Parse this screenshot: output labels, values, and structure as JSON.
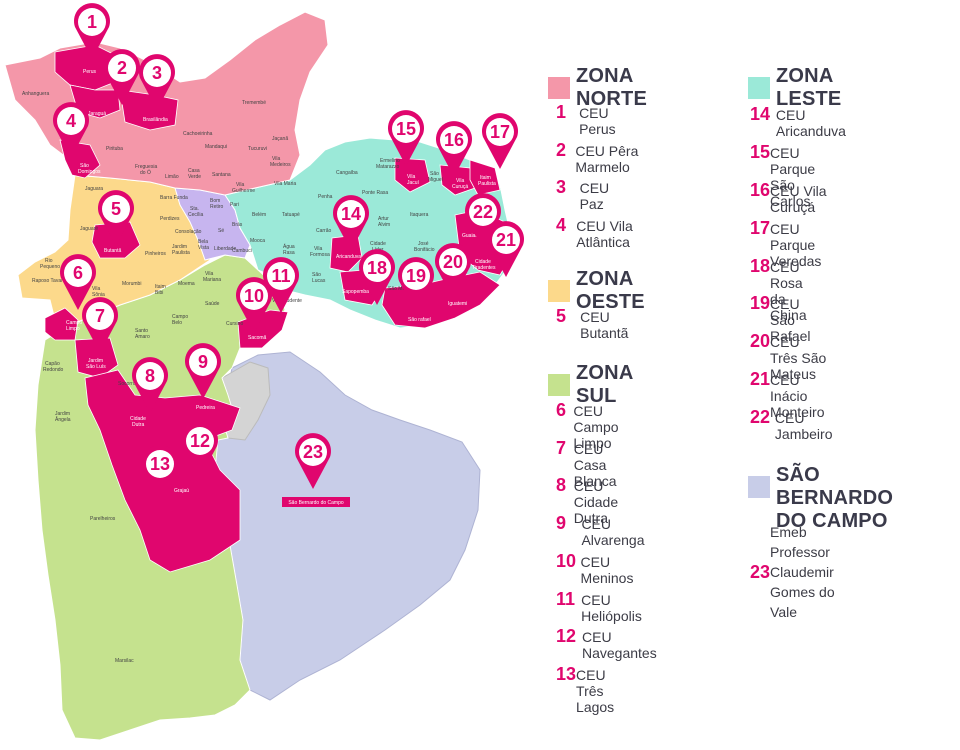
{
  "colors": {
    "accent": "#e0066e",
    "norte": "#f497a9",
    "oeste": "#fcd98b",
    "sul": "#c5e28e",
    "leste": "#9be9d8",
    "centro": "#c7b5ef",
    "sbc": "#c8cde8",
    "gray": "#d4d4d4"
  },
  "zones": {
    "norte": {
      "title": "ZONA NORTE",
      "items": [
        {
          "num": "1",
          "name": "CEU Perus"
        },
        {
          "num": "2",
          "name": "CEU Pêra Marmelo"
        },
        {
          "num": "3",
          "name": "CEU Paz"
        },
        {
          "num": "4",
          "name": "CEU Vila Atlântica"
        }
      ]
    },
    "oeste": {
      "title": "ZONA OESTE",
      "items": [
        {
          "num": "5",
          "name": "CEU Butantã"
        }
      ]
    },
    "sul": {
      "title": "ZONA SUL",
      "items": [
        {
          "num": "6",
          "name": "CEU Campo Limpo"
        },
        {
          "num": "7",
          "name": "CEU Casa Blanca"
        },
        {
          "num": "8",
          "name": "CEU Cidade Dutra"
        },
        {
          "num": "9",
          "name": "CEU Alvarenga"
        },
        {
          "num": "10",
          "name": "CEU Meninos"
        },
        {
          "num": "11",
          "name": "CEU Heliópolis"
        },
        {
          "num": "12",
          "name": "CEU Navegantes"
        },
        {
          "num": "13",
          "name": "CEU Três Lagos"
        }
      ]
    },
    "leste": {
      "title": "ZONA LESTE",
      "items": [
        {
          "num": "14",
          "name": "CEU Aricanduva"
        },
        {
          "num": "15",
          "name": "CEU Parque São Carlos"
        },
        {
          "num": "16",
          "name": "CEU Vila Curuçá"
        },
        {
          "num": "17",
          "name": "CEU Parque Veredas"
        },
        {
          "num": "18",
          "name": "CEU Rosa da China"
        },
        {
          "num": "19",
          "name": "CEU São Rafael"
        },
        {
          "num": "20",
          "name": "CEU Três São Mateus"
        },
        {
          "num": "21",
          "name": "CEU Inácio Monteiro"
        },
        {
          "num": "22",
          "name": "CEU Jambeiro"
        }
      ]
    },
    "sbc": {
      "title_line1": "SÃO BERNARDO",
      "title_line2": "DO CAMPO",
      "item": {
        "num": "23",
        "line1": "Emeb Professor Claudemir",
        "line2": "Gomes do Vale"
      }
    }
  },
  "map": {
    "pins": [
      "1",
      "2",
      "3",
      "4",
      "5",
      "6",
      "7",
      "8",
      "9",
      "10",
      "11",
      "12",
      "13",
      "14",
      "15",
      "16",
      "17",
      "18",
      "19",
      "20",
      "21",
      "22",
      "23"
    ],
    "sbc_label": "São Bernardo do Campo",
    "districts_white": [
      "Perus",
      "Jaraguá",
      "Brasilândia",
      "São Domingos",
      "Butantã",
      "Campo Limpo",
      "Jardim São Luís",
      "Cidade Dutra",
      "Pedreira",
      "Grajaú",
      "Sacomã",
      "Aricanduva",
      "Sapopemba",
      "São rafael",
      "Iguatemi",
      "Cidade Tiradentes",
      "Guaianases",
      "Vila Jacuí",
      "Vila Curuçá",
      "Itaim Paulista"
    ],
    "districts_dark": [
      "Anhanguera",
      "Pirituba",
      "Freguesia do Ó",
      "Limão",
      "Casa Verde",
      "Cachoeirinha",
      "Mandaqui",
      "Tremembé",
      "Tucuruvi",
      "Jaçanã",
      "Vila Medeiros",
      "Vila Maria",
      "Vila Guilherme",
      "Santana",
      "Barra Funda",
      "Perdizes",
      "Lapa",
      "Jaguaré",
      "Jaguara",
      "Rio Pequeno",
      "Raposo Tavares",
      "Vila Sônia",
      "Morumbi",
      "Pinheiros",
      "Jardim Paulista",
      "Itaim Bibi",
      "Moema",
      "Saúde",
      "Campo Belo",
      "Santo Amaro",
      "Vila Mariana",
      "Cursino",
      "Socorro",
      "Capão Redondo",
      "Jardim Ângela",
      "Parelheiros",
      "Marsilac",
      "Sta. Cecília",
      "Bom Retiro",
      "Consolação",
      "Bela Vista",
      "Liberdade",
      "Sé",
      "Cambuci",
      "Pari",
      "Brás",
      "Mooca",
      "Belém",
      "Tatuapé",
      "Carrão",
      "Água Rasa",
      "Vila Formosa",
      "São Lucas",
      "Penha",
      "Cangaíba",
      "Ermelino Matarazzo",
      "Ponte Rasa",
      "Vila Matilde",
      "Artur Alvim",
      "Itaquera",
      "Cidade Líder",
      "José Bonifácio",
      "São Miguel",
      "Parque do Carmo",
      "São Mateus",
      "Vila Prudente"
    ]
  }
}
